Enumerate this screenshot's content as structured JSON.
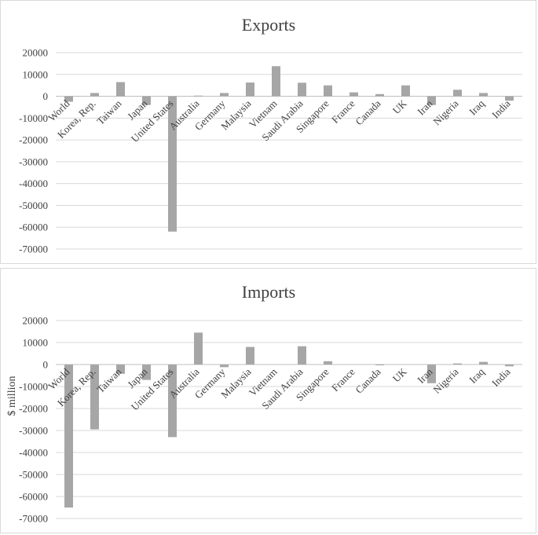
{
  "colors": {
    "bar": "#a6a6a6",
    "grid": "#d9d9d9",
    "text": "#404040"
  },
  "chart_data": [
    {
      "type": "bar",
      "title": "Exports",
      "xlabel": "",
      "ylabel": "",
      "ylim": [
        -70000,
        20000
      ],
      "yticks": [
        "20000",
        "10000",
        "0",
        "-10000",
        "-20000",
        "-30000",
        "-40000",
        "-50000",
        "-60000",
        "-70000"
      ],
      "grid": true,
      "categories": [
        "World",
        "Korea, Rep.",
        "Taiwan",
        "Japan",
        "United States",
        "Australia",
        "Germany",
        "Malaysia",
        "Vietnam",
        "Saudi Arabia",
        "Singapore",
        "France",
        "Canada",
        "UK",
        "Iran",
        "Nigeria",
        "Iraq",
        "India"
      ],
      "values": [
        -2500,
        1500,
        6500,
        -4000,
        -62000,
        300,
        1500,
        6300,
        13800,
        6200,
        5000,
        1800,
        1000,
        5000,
        -4000,
        3000,
        1500,
        -2000
      ]
    },
    {
      "type": "bar",
      "title": "Imports",
      "xlabel": "",
      "ylabel": "$ million",
      "ylim": [
        -70000,
        20000
      ],
      "yticks": [
        "20000",
        "10000",
        "0",
        "-10000",
        "-20000",
        "-30000",
        "-40000",
        "-50000",
        "-60000",
        "-70000"
      ],
      "grid": true,
      "categories": [
        "World",
        "Korea, Rep.",
        "Taiwan",
        "Japan",
        "United States",
        "Australia",
        "Germany",
        "Malaysia",
        "Vietnam",
        "Saudi Arabia",
        "Singapore",
        "France",
        "Canada",
        "UK",
        "Iran",
        "Nigeria",
        "Iraq",
        "India"
      ],
      "values": [
        -65000,
        -29500,
        -4200,
        -7000,
        -33000,
        14500,
        -1200,
        8000,
        0,
        8300,
        1500,
        0,
        -300,
        0,
        -8500,
        500,
        1200,
        -800
      ]
    }
  ]
}
